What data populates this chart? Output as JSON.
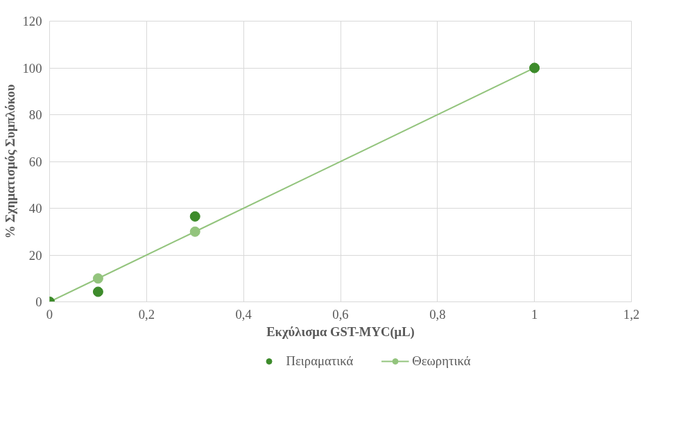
{
  "chart_data": {
    "type": "scatter",
    "xlabel": "Εκχύλισμα GST-MYC(μL)",
    "ylabel": "% Σχηματισμός Συμπλόκου",
    "series": [
      {
        "name": "Πειραματικά",
        "type": "scatter",
        "color": "#3d8b2b",
        "x": [
          0,
          0.1,
          0.3,
          1
        ],
        "values": [
          0,
          4.3,
          36.5,
          100
        ]
      },
      {
        "name": "Θεωρητικά",
        "type": "line",
        "color": "#93c47d",
        "x": [
          0,
          0.1,
          0.3,
          1
        ],
        "values": [
          0,
          10,
          30,
          100
        ]
      }
    ],
    "marker": "circle",
    "line_style": "solid",
    "xlim": [
      0,
      1.2
    ],
    "xticks": [
      0,
      {
        "value": 0.2,
        "label": "0,2"
      },
      {
        "value": 0.4,
        "label": "0,4"
      },
      {
        "value": 0.6,
        "label": "0,6"
      },
      {
        "value": 0.8,
        "label": "0,8"
      },
      1,
      {
        "value": 1.2,
        "label": "1,2"
      }
    ],
    "ylim": [
      0,
      120
    ],
    "yticks": [
      0,
      20,
      40,
      60,
      80,
      100,
      120
    ],
    "grid": true,
    "legend": "bottom"
  }
}
